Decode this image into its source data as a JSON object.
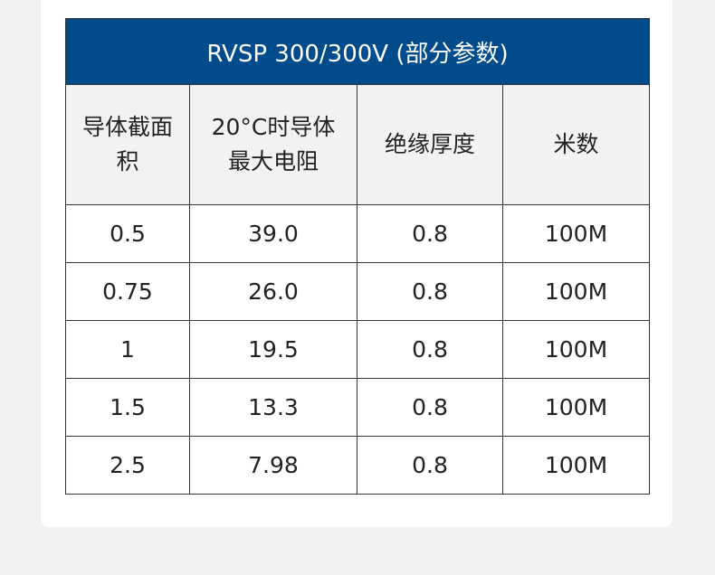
{
  "table": {
    "title": "RVSP 300/300V (部分参数)",
    "headers": [
      {
        "line1": "导体截面",
        "line2": "积"
      },
      {
        "line1": "20°C时导体",
        "line2": "最大电阻"
      },
      {
        "line1": "绝缘厚度",
        "line2": ""
      },
      {
        "line1": "米数",
        "line2": ""
      }
    ],
    "rows": [
      [
        "0.5",
        "39.0",
        "0.8",
        "100M"
      ],
      [
        "0.75",
        "26.0",
        "0.8",
        "100M"
      ],
      [
        "1",
        "19.5",
        "0.8",
        "100M"
      ],
      [
        "1.5",
        "13.3",
        "0.8",
        "100M"
      ],
      [
        "2.5",
        "7.98",
        "0.8",
        "100M"
      ]
    ]
  }
}
